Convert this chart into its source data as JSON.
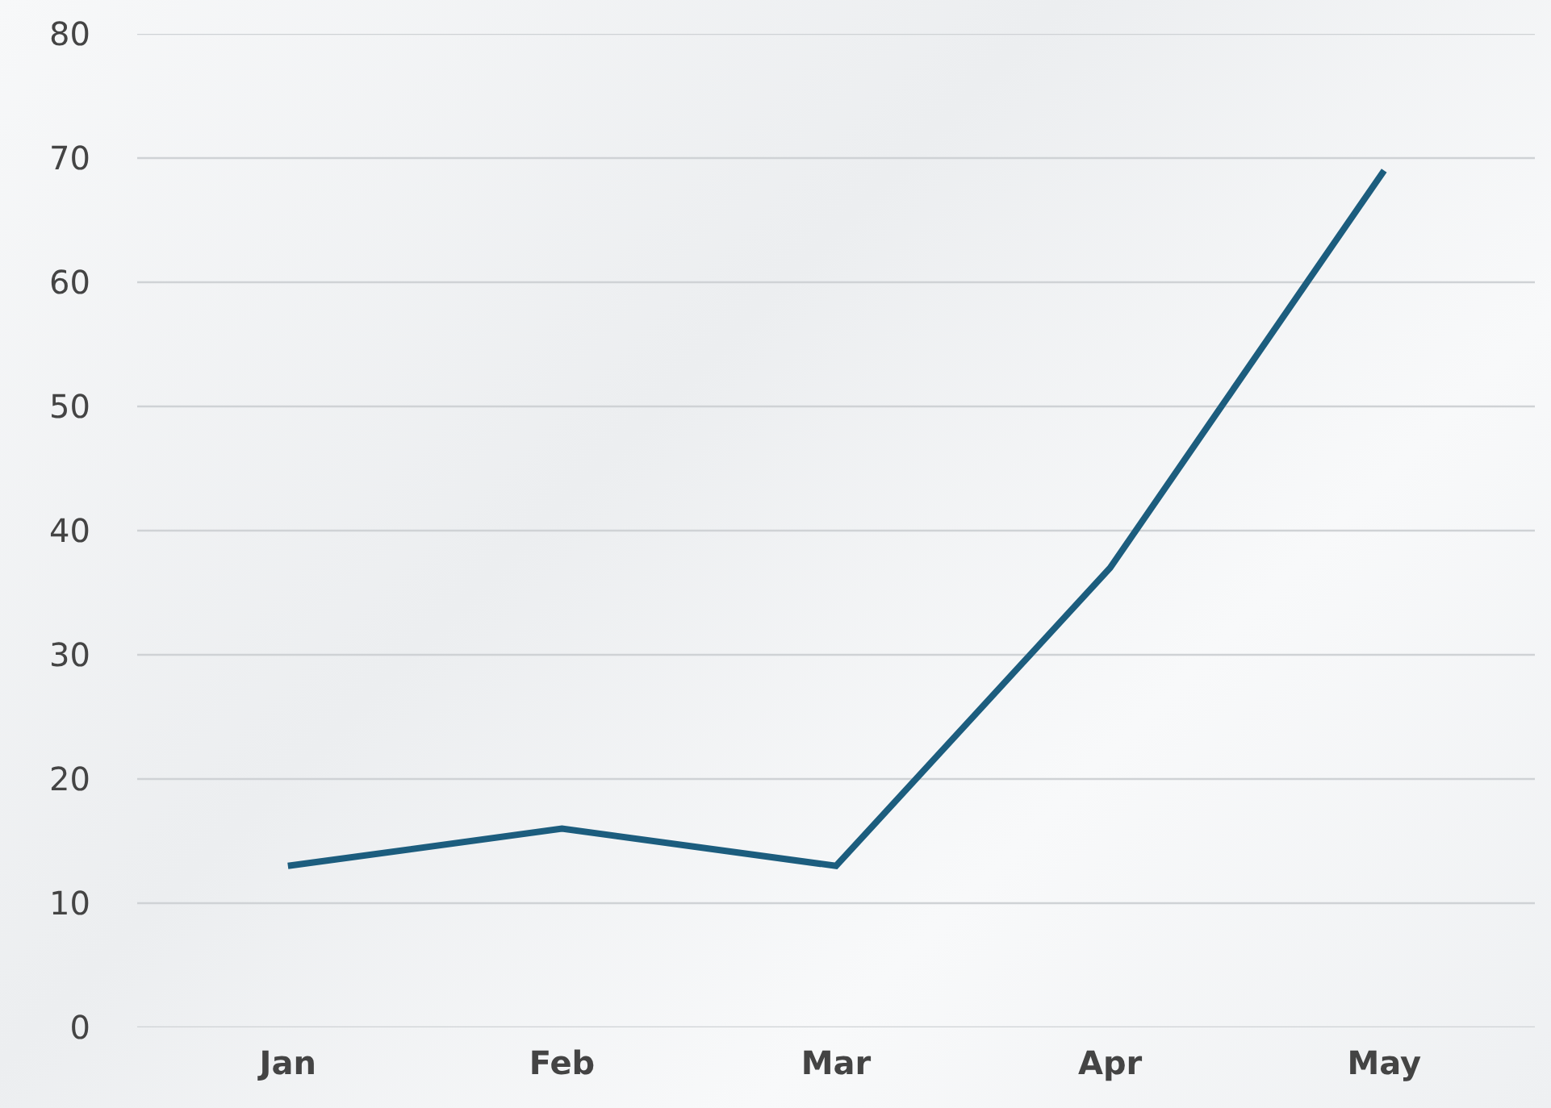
{
  "chart_data": {
    "type": "line",
    "categories": [
      "Jan",
      "Feb",
      "Mar",
      "Apr",
      "May"
    ],
    "series": [
      {
        "color": "#1c5d7e",
        "values": [
          13,
          16,
          13,
          37,
          69
        ]
      }
    ],
    "ylim": [
      0,
      80
    ],
    "yticks": [
      0,
      10,
      20,
      30,
      40,
      50,
      60,
      70,
      80
    ],
    "grid": "y",
    "line_style": "solid"
  }
}
